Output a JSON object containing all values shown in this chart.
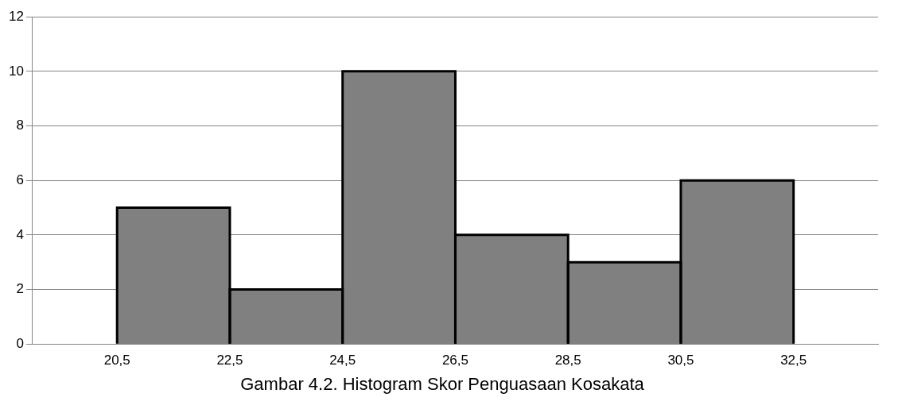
{
  "chart_data": {
    "type": "histogram",
    "title": "Gambar 4.2. Histogram Skor Penguasaan Kosakata",
    "bins": [
      20.5,
      22.5,
      24.5,
      26.5,
      28.5,
      30.5,
      32.5
    ],
    "values": [
      5,
      2,
      10,
      4,
      3,
      6
    ],
    "color": "#808080",
    "xlim": [
      19,
      34
    ],
    "xticks": [
      {
        "value": 20.5,
        "label": "20,5"
      },
      {
        "value": 22.5,
        "label": "22,5"
      },
      {
        "value": 24.5,
        "label": "24,5"
      },
      {
        "value": 26.5,
        "label": "26,5"
      },
      {
        "value": 28.5,
        "label": "28,5"
      },
      {
        "value": 30.5,
        "label": "30,5"
      },
      {
        "value": 32.5,
        "label": "32,5"
      }
    ],
    "ylim": [
      0,
      12
    ],
    "yticks": [
      0,
      2,
      4,
      6,
      8,
      10,
      12
    ],
    "grid": "y",
    "legend": false
  }
}
